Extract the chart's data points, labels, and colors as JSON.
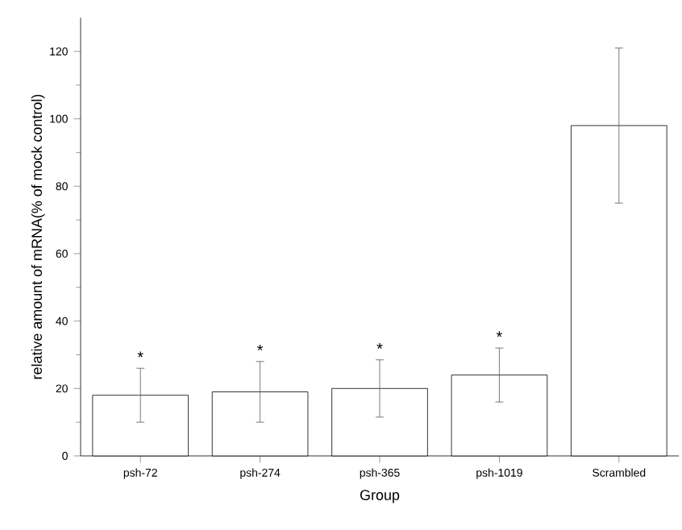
{
  "chart_data": {
    "type": "bar",
    "xlabel": "Group",
    "ylabel": "relative amount of mRNA(% of mock control)",
    "categories": [
      "psh-72",
      "psh-274",
      "psh-365",
      "psh-1019",
      "Scrambled"
    ],
    "values": [
      18,
      19,
      20,
      24,
      98
    ],
    "errors": [
      [
        10,
        26
      ],
      [
        10,
        28
      ],
      [
        11.5,
        28.5
      ],
      [
        16,
        32
      ],
      [
        75,
        121
      ]
    ],
    "color": "#ffffff",
    "ylim": [
      0,
      130
    ],
    "yticks": [
      0,
      20,
      40,
      60,
      80,
      100,
      120
    ],
    "annotations": [
      "*",
      "*",
      "*",
      "*"
    ]
  }
}
